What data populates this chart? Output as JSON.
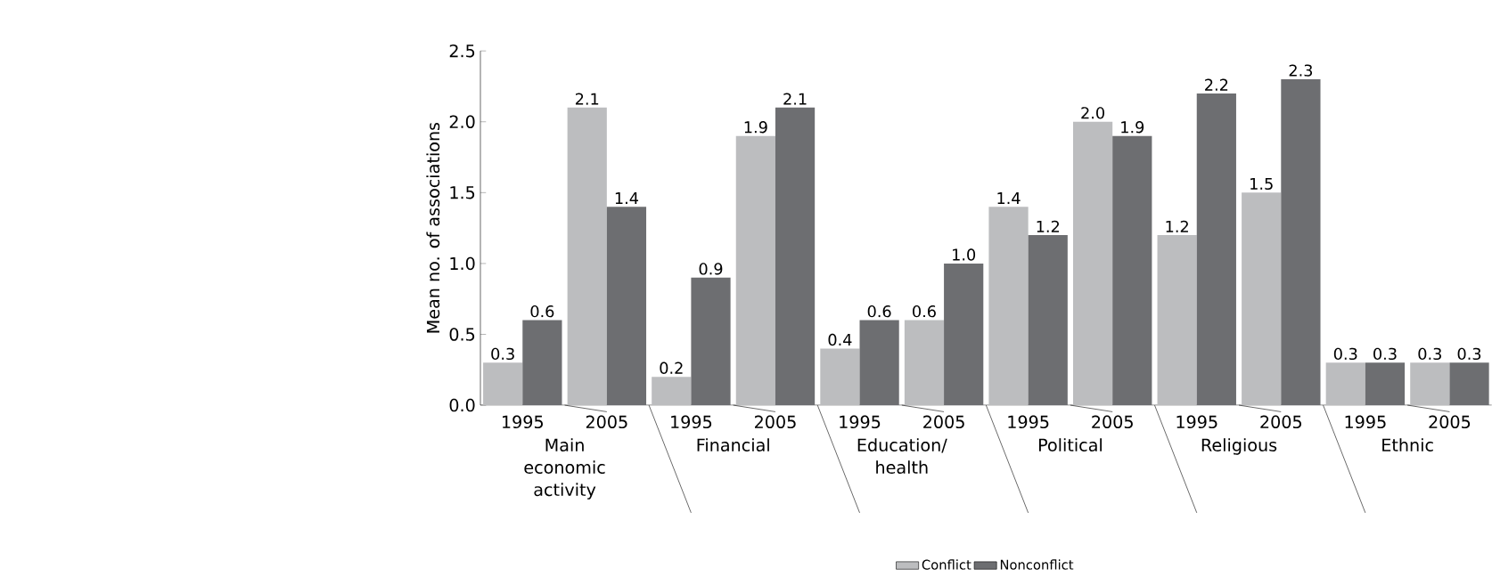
{
  "chart_data": {
    "type": "bar",
    "ylabel": "Mean no. of associations",
    "categories": [
      "1995",
      "2005",
      "1995",
      "2005",
      "1995",
      "2005",
      "1995",
      "2005",
      "1995",
      "2005",
      "1995",
      "2005"
    ],
    "annotations": [
      "Main economic activity",
      "Financial",
      "Education/ health",
      "Political",
      "Religious",
      "Ethnic"
    ],
    "series": [
      {
        "name": "Conflict",
        "color": "#bcbdbf",
        "values": [
          0.3,
          2.1,
          0.2,
          1.9,
          0.4,
          0.6,
          1.4,
          2.0,
          1.2,
          1.5,
          0.3,
          0.3
        ],
        "value_labels": [
          "0.3",
          "2.1",
          "0.2",
          "1.9",
          "0.4",
          "0.6",
          "1.4",
          "2.0",
          "1.2",
          "1.5",
          "0.3",
          "0.3"
        ]
      },
      {
        "name": "Nonconflict",
        "color": "#6d6e71",
        "values": [
          0.6,
          1.4,
          0.9,
          2.1,
          0.6,
          1.0,
          1.2,
          1.9,
          2.2,
          2.3,
          0.3,
          0.3
        ],
        "value_labels": [
          "0.6",
          "1.4",
          "0.9",
          "2.1",
          "0.6",
          "1.0",
          "1.2",
          "1.9",
          "2.2",
          "2.3",
          "0.3",
          "0.3"
        ]
      }
    ],
    "ylim": [
      0,
      2.5
    ],
    "yticks": [
      {
        "value": 0,
        "label": "0.0"
      },
      0.5,
      {
        "value": 1,
        "label": "1.0"
      },
      1.5,
      {
        "value": 2,
        "label": "2.0"
      },
      2.5
    ],
    "legend": "bottom"
  }
}
